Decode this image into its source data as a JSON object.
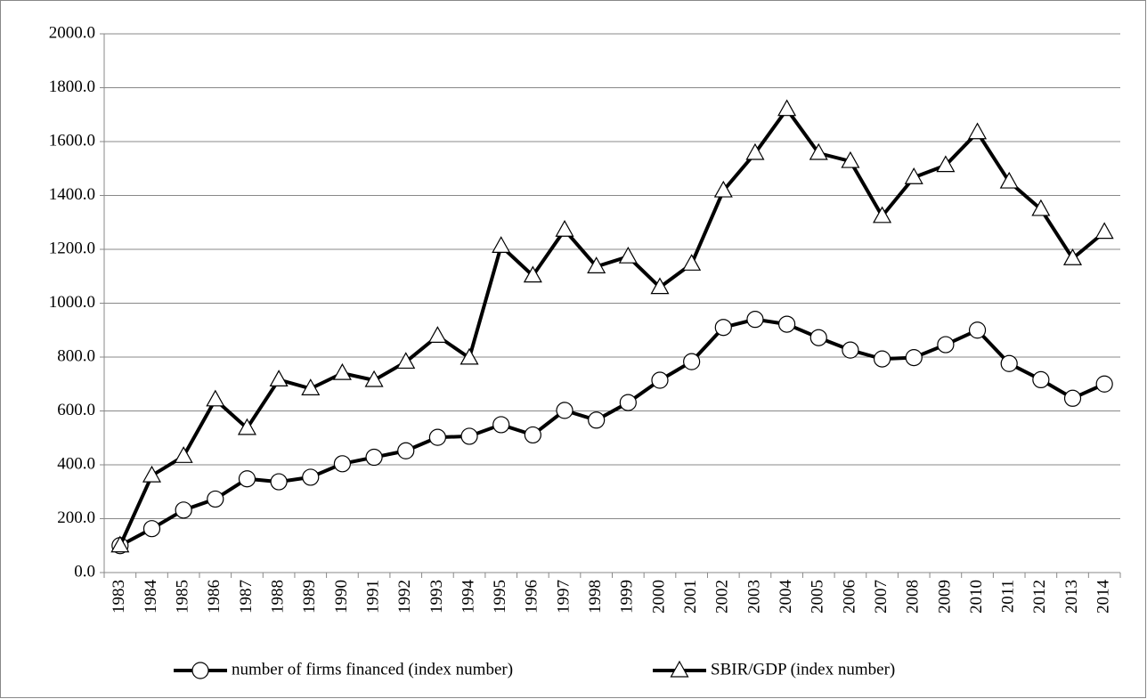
{
  "chart_data": {
    "type": "line",
    "categories": [
      "1983",
      "1984",
      "1985",
      "1986",
      "1987",
      "1988",
      "1989",
      "1990",
      "1991",
      "1992",
      "1993",
      "1994",
      "1995",
      "1996",
      "1997",
      "1998",
      "1999",
      "2000",
      "2001",
      "2002",
      "2003",
      "2004",
      "2005",
      "2006",
      "2007",
      "2008",
      "2009",
      "2010",
      "2011",
      "2012",
      "2013",
      "2014"
    ],
    "series": [
      {
        "name": "number of firms financed (index number)",
        "color": "#000000",
        "marker": "circle",
        "values": [
          100,
          163,
          232,
          273,
          348,
          337,
          354,
          404,
          428,
          452,
          502,
          506,
          549,
          511,
          602,
          566,
          631,
          714,
          783,
          910,
          940,
          922,
          872,
          826,
          793,
          798,
          846,
          900,
          776,
          716,
          647,
          700
        ]
      },
      {
        "name": "SBIR/GDP (index number)",
        "color": "#000000",
        "marker": "triangle",
        "values": [
          100,
          360,
          432,
          642,
          536,
          716,
          683,
          740,
          714,
          782,
          878,
          797,
          1212,
          1102,
          1272,
          1136,
          1173,
          1059,
          1146,
          1418,
          1557,
          1720,
          1557,
          1527,
          1323,
          1467,
          1512,
          1634,
          1451,
          1349,
          1166,
          1264
        ]
      }
    ],
    "ylim": [
      0,
      2000
    ],
    "yticks": [
      {
        "value": 0,
        "label": "0.0"
      },
      {
        "value": 200,
        "label": "200.0"
      },
      {
        "value": 400,
        "label": "400.0"
      },
      {
        "value": 600,
        "label": "600.0"
      },
      {
        "value": 800,
        "label": "800.0"
      },
      {
        "value": 1000,
        "label": "1000.0"
      },
      {
        "value": 1200,
        "label": "1200.0"
      },
      {
        "value": 1400,
        "label": "1400.0"
      },
      {
        "value": 1600,
        "label": "1600.0"
      },
      {
        "value": 1800,
        "label": "1800.0"
      },
      {
        "value": 2000,
        "label": "2000.0"
      }
    ],
    "grid": true,
    "legend": "bottom"
  }
}
